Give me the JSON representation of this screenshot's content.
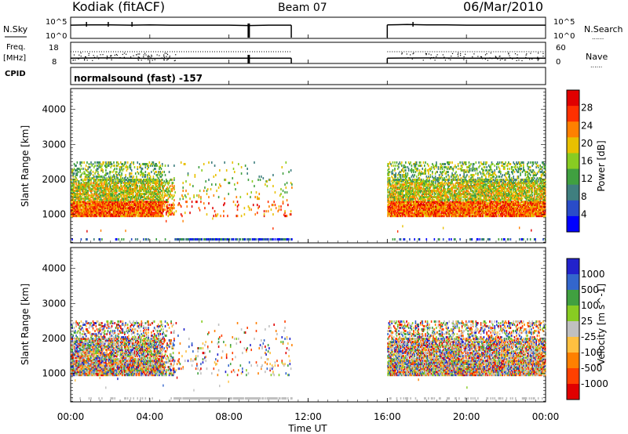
{
  "header": {
    "station": "Kodiak (fitACF)",
    "beam": "Beam 07",
    "date": "06/Mar/2010"
  },
  "labels": {
    "nsky": "N.Sky",
    "nsearch": "N.Search",
    "freq": "Freq.",
    "mhz": "[MHz]",
    "nave": "Nave",
    "cpid": "CPID",
    "cpid_value": "normalsound (fast) -157",
    "dotted_legend": "......"
  },
  "colors": {
    "power_scale": [
      "#0000ff",
      "#2a4cc8",
      "#3f7f7f",
      "#40a040",
      "#88cc22",
      "#e8c000",
      "#ff8000",
      "#ff3000",
      "#e00000"
    ],
    "velocity_scale": [
      "#e00000",
      "#ff4000",
      "#ff8000",
      "#ffc040",
      "#c0c0c0",
      "#88cc22",
      "#40a040",
      "#3366cc",
      "#2222cc"
    ]
  },
  "chart_data": [
    {
      "type": "line",
      "name": "noise",
      "left_ticks": [
        "10^5",
        "10^0"
      ],
      "right_ticks": [
        "10^5",
        "10^0"
      ],
      "left_label": "N.Sky",
      "right_label": "N.Search",
      "data_gap_hours": [
        11.15,
        16.0
      ],
      "x": [
        0,
        1,
        2,
        3,
        4,
        5,
        6,
        7,
        8,
        9,
        10,
        11,
        16,
        17,
        18,
        19,
        20,
        21,
        22,
        23,
        24
      ],
      "values": [
        3.6,
        3.7,
        3.7,
        3.6,
        3.7,
        3.6,
        3.6,
        3.6,
        3.6,
        3.5,
        3.6,
        3.6,
        3.7,
        3.8,
        3.7,
        3.7,
        3.6,
        3.6,
        3.6,
        3.6,
        3.6
      ]
    },
    {
      "type": "line",
      "name": "frequency / nave",
      "left_ticks": [
        "18",
        "8"
      ],
      "right_ticks": [
        "60",
        "0"
      ],
      "left_label": "Freq. [MHz]",
      "right_label": "Nave",
      "data_gap_hours": [
        11.15,
        16.0
      ],
      "x": [
        0,
        2,
        4,
        6,
        8,
        10,
        11,
        16,
        18,
        20,
        22,
        24
      ],
      "values": [
        10.5,
        10.6,
        10.4,
        10.5,
        10.5,
        10.5,
        10.5,
        10.5,
        10.6,
        10.5,
        10.5,
        10.5
      ]
    },
    {
      "type": "heatmap",
      "name": "power",
      "ylabel": "Slant Range [km]",
      "yticks": [
        1000,
        2000,
        3000,
        4000
      ],
      "ylim": [
        180,
        4600
      ],
      "xlim": [
        0,
        24
      ],
      "colorbar_label": "Power [dB]",
      "colorbar_ticks": [
        4,
        8,
        12,
        16,
        20,
        24,
        28
      ],
      "colorbar_range": [
        0,
        30
      ],
      "data_windows_hours": [
        [
          0,
          11.2
        ],
        [
          16.0,
          24.0
        ]
      ],
      "echo_ranges_km": {
        "main_min": 950,
        "main_max": 2500,
        "ground_band": 280
      },
      "typical_power_db": {
        "near_range": 28,
        "far_range": 12
      }
    },
    {
      "type": "heatmap",
      "name": "velocity",
      "ylabel": "Slant Range [km]",
      "yticks": [
        1000,
        2000,
        3000,
        4000
      ],
      "ylim": [
        180,
        4600
      ],
      "xlim": [
        0,
        24
      ],
      "colorbar_label": "Velocity [m s^-1]",
      "colorbar_ticks": [
        1000,
        500,
        100,
        25,
        -25,
        -100,
        -500,
        -1000
      ],
      "data_windows_hours": [
        [
          0,
          11.2
        ],
        [
          16.0,
          24.0
        ]
      ],
      "echo_ranges_km": {
        "main_min": 950,
        "main_max": 2500,
        "ground_band": 280
      }
    }
  ],
  "xaxis": {
    "label": "Time UT",
    "ticks": [
      "00:00",
      "04:00",
      "08:00",
      "12:00",
      "16:00",
      "20:00",
      "00:00"
    ]
  }
}
